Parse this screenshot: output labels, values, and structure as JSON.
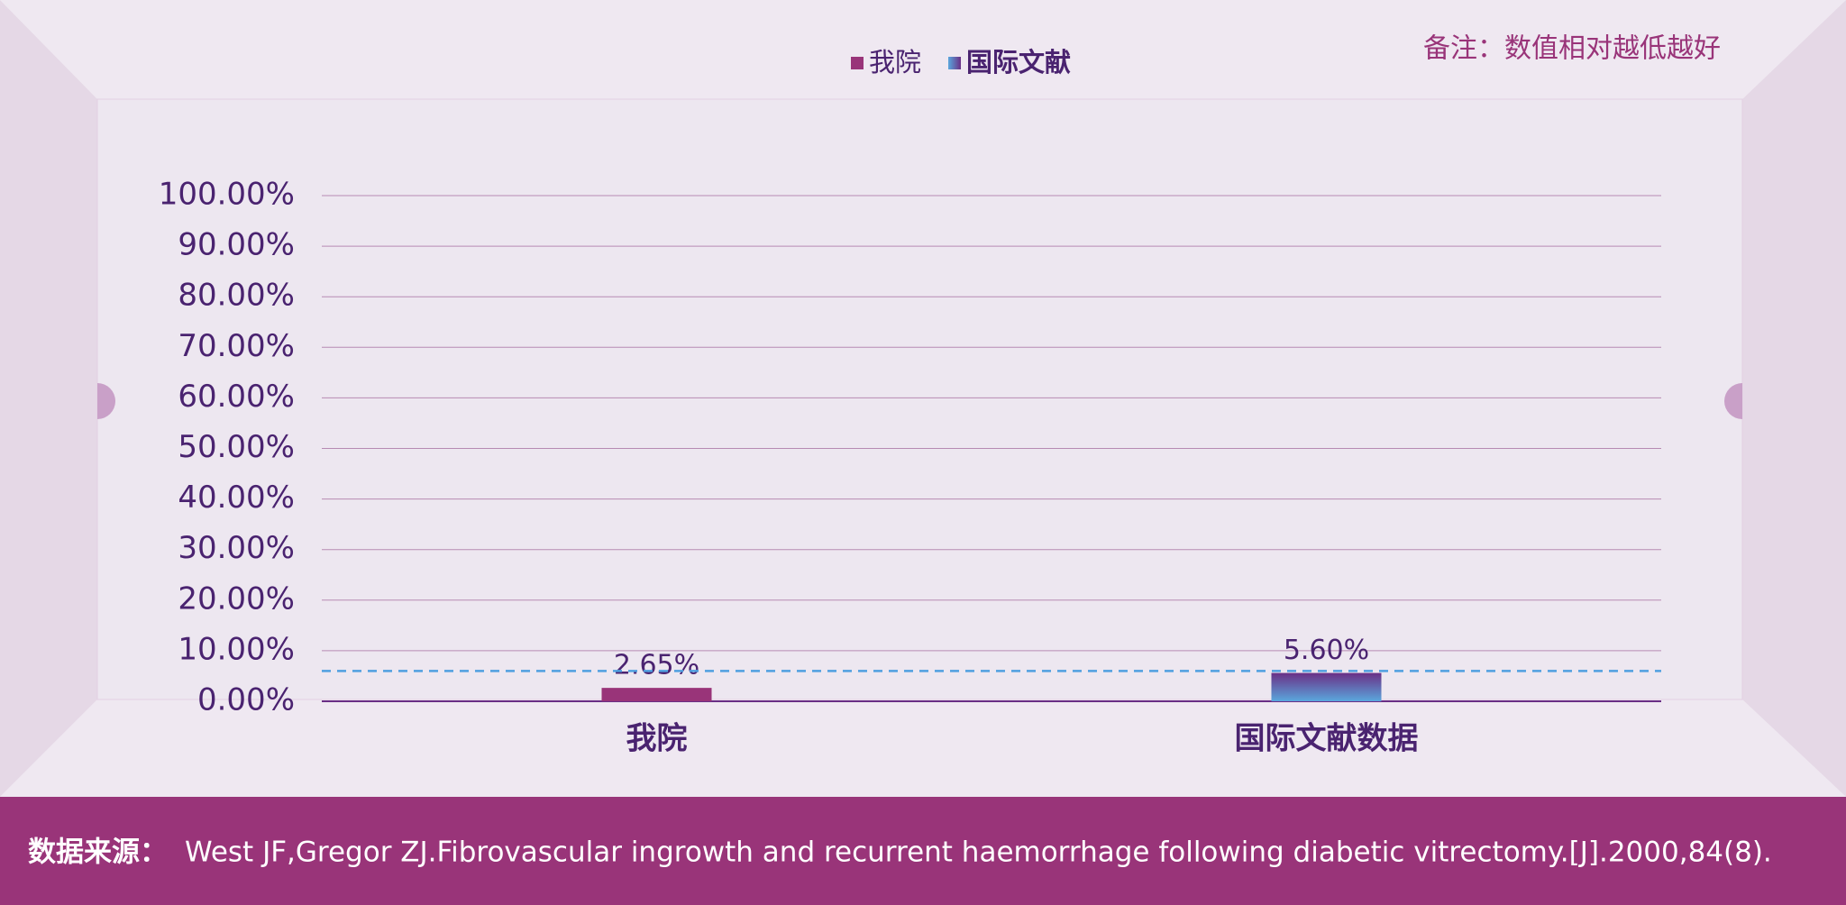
{
  "chart_data": {
    "type": "bar",
    "note": "备注：数值相对越低越好",
    "categories": [
      "我院",
      "国际文献数据"
    ],
    "series": [
      {
        "name": "我院",
        "color": "#993479",
        "values": [
          2.65,
          null
        ],
        "value_labels": [
          "2.65%",
          null
        ]
      },
      {
        "name": "国际文献",
        "color": "gradient",
        "values": [
          null,
          5.6
        ],
        "value_labels": [
          null,
          "5.60%"
        ]
      }
    ],
    "reference_line": 6,
    "ylim": [
      0,
      100
    ],
    "yticks": [
      {
        "value": 0,
        "label": "0.00%"
      },
      {
        "value": 10,
        "label": "10.00%"
      },
      {
        "value": 20,
        "label": "20.00%"
      },
      {
        "value": 30,
        "label": "30.00%"
      },
      {
        "value": 40,
        "label": "40.00%"
      },
      {
        "value": 50,
        "label": "50.00%"
      },
      {
        "value": 60,
        "label": "60.00%"
      },
      {
        "value": 70,
        "label": "70.00%"
      },
      {
        "value": 80,
        "label": "80.00%"
      },
      {
        "value": 90,
        "label": "90.00%"
      },
      {
        "value": 100,
        "label": "100.00%"
      }
    ],
    "grid": true
  },
  "footer": {
    "label": "数据来源：",
    "text": "West JF,Gregor ZJ.Fibrovascular ingrowth and recurrent haemorrhage following diabetic vitrectomy.[J].2000,84(8)."
  }
}
